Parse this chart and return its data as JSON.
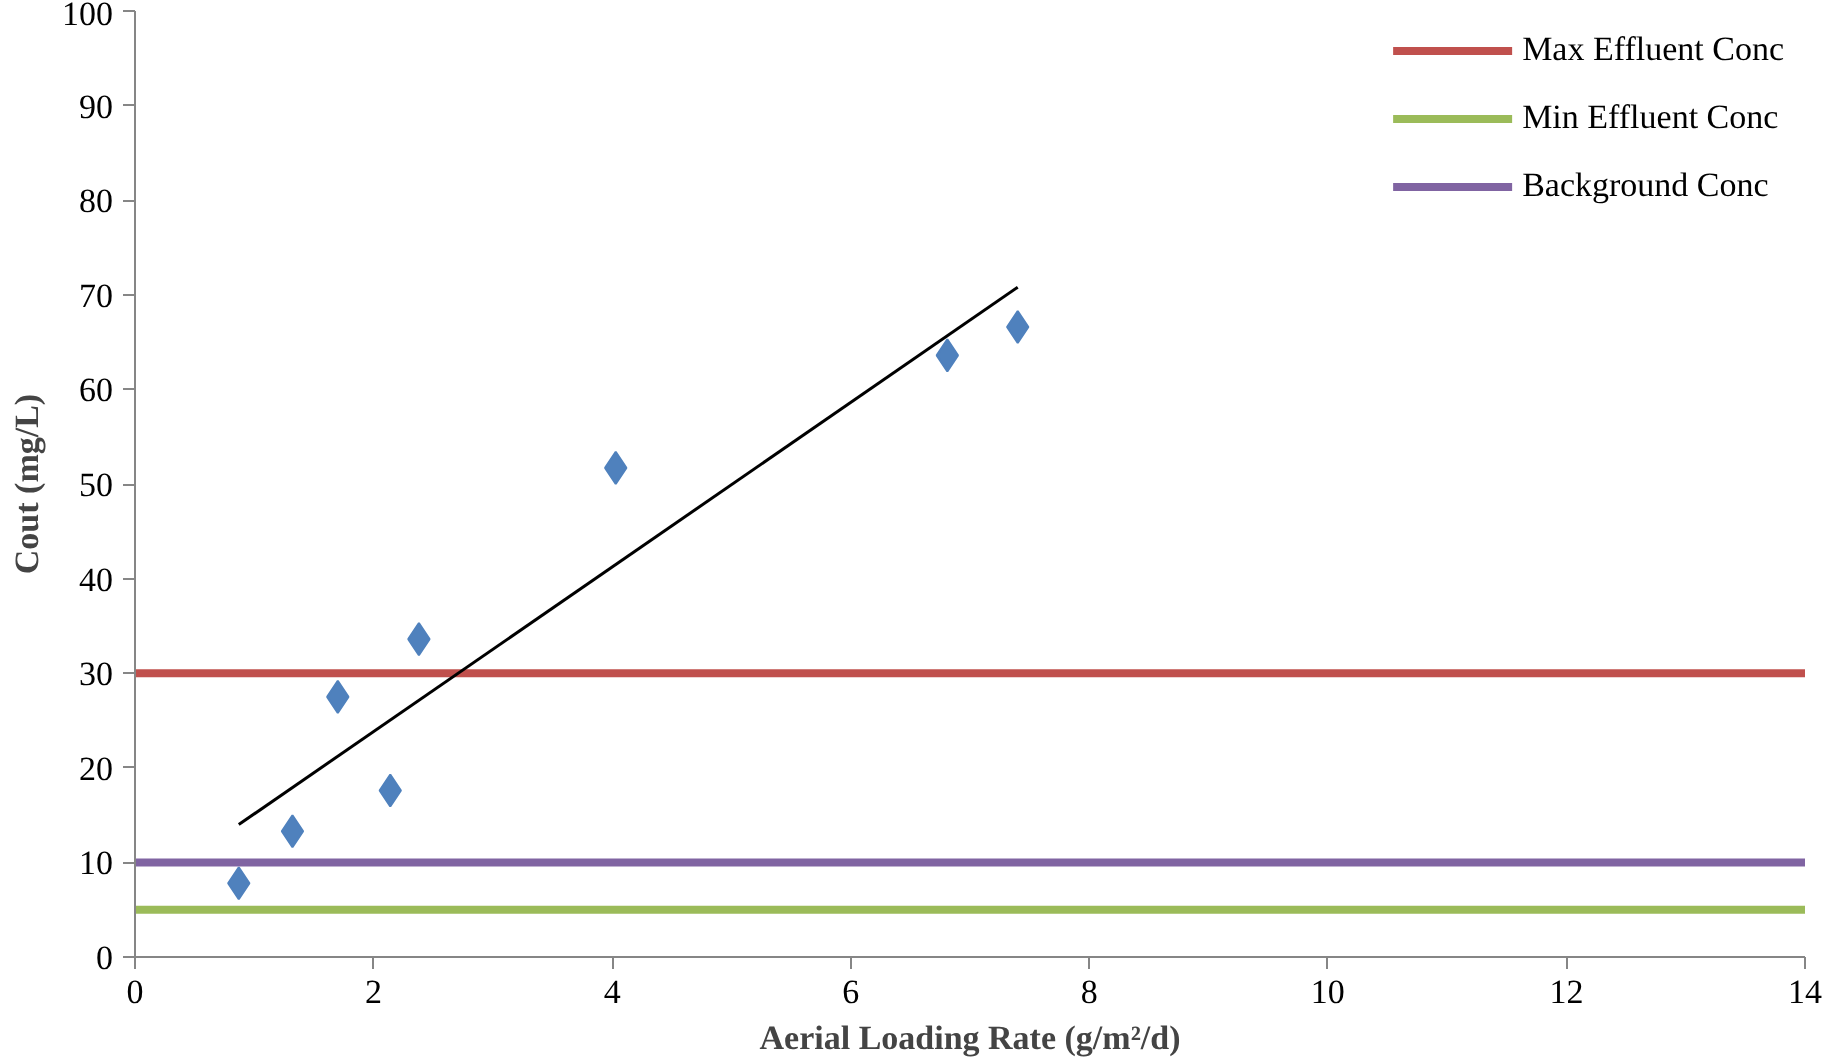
{
  "chart_data": {
    "type": "scatter",
    "xlabel": "Aerial Loading Rate (g/m²/d)",
    "ylabel": "Cout (mg/L)",
    "xlim": [
      0,
      14
    ],
    "ylim": [
      0,
      100
    ],
    "xticks": [
      0,
      2,
      4,
      6,
      8,
      10,
      12,
      14
    ],
    "yticks": [
      0,
      10,
      20,
      30,
      40,
      50,
      60,
      70,
      80,
      90,
      100
    ],
    "grid": false,
    "legend": "top right",
    "series": [
      {
        "color": "#4f81bd",
        "marker": "diamond",
        "x": [
          0.87,
          1.32,
          1.7,
          2.14,
          2.38,
          4.03,
          6.81,
          7.4
        ],
        "values": [
          7.8,
          13.3,
          27.5,
          17.6,
          33.6,
          51.7,
          63.6,
          66.6
        ]
      },
      {
        "type": "line",
        "color": "#000000",
        "x": [
          0.87,
          7.4
        ],
        "values": [
          14.0,
          70.8
        ],
        "marker": "none"
      }
    ],
    "ref_lines": [
      {
        "axis": "y",
        "value": 30,
        "label": "Max Effluent Conc",
        "color": "#c0504d"
      },
      {
        "axis": "y",
        "value": 5,
        "label": "Min Effluent Conc",
        "color": "#9bbb59"
      },
      {
        "axis": "y",
        "value": 10,
        "label": "Background Conc",
        "color": "#8064a2"
      }
    ]
  }
}
